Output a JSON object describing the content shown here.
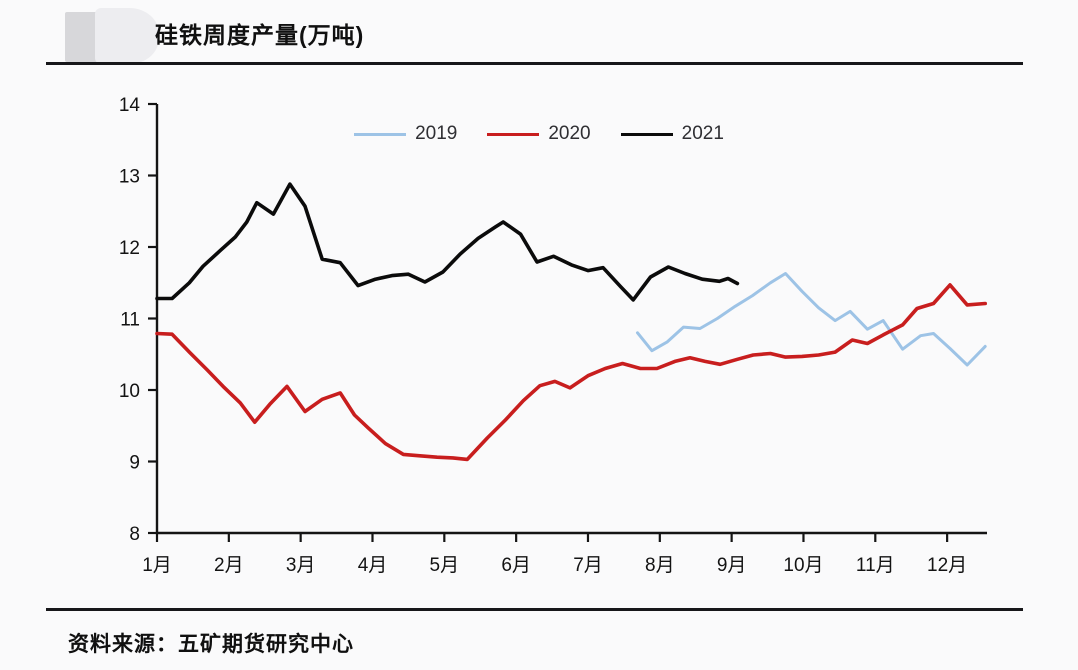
{
  "page": {
    "background": "#fafafb"
  },
  "header": {
    "title": "硅铁周度产量(万吨)",
    "logo": "blurred-gray-logo-placeholder"
  },
  "footer": {
    "source": "资料来源：五矿期货研究中心"
  },
  "chart_data": {
    "type": "line",
    "title": "硅铁周度产量(万吨)",
    "xlabel": "",
    "ylabel": "",
    "x_unit": "month-of-year (weekly data points)",
    "y_unit": "万吨",
    "xlim": [
      1,
      12.56
    ],
    "ylim": [
      8,
      14
    ],
    "y_ticks": [
      8,
      9,
      10,
      11,
      12,
      13,
      14
    ],
    "x_tick_labels": [
      "1月",
      "2月",
      "3月",
      "4月",
      "5月",
      "6月",
      "7月",
      "8月",
      "9月",
      "10月",
      "11月",
      "12月"
    ],
    "grid": false,
    "legend_position": "top-center",
    "axis_color": "#141414",
    "series": [
      {
        "name": "2019",
        "color": "#9dc3e6",
        "stroke_width": 3,
        "points": [
          [
            7.69,
            10.8
          ],
          [
            7.89,
            10.55
          ],
          [
            8.1,
            10.67
          ],
          [
            8.33,
            10.88
          ],
          [
            8.56,
            10.86
          ],
          [
            8.8,
            11.0
          ],
          [
            9.05,
            11.17
          ],
          [
            9.29,
            11.32
          ],
          [
            9.54,
            11.5
          ],
          [
            9.75,
            11.63
          ],
          [
            9.98,
            11.38
          ],
          [
            10.21,
            11.15
          ],
          [
            10.44,
            10.97
          ],
          [
            10.65,
            11.1
          ],
          [
            10.89,
            10.85
          ],
          [
            11.11,
            10.97
          ],
          [
            11.38,
            10.57
          ],
          [
            11.63,
            10.76
          ],
          [
            11.81,
            10.79
          ],
          [
            12.04,
            10.58
          ],
          [
            12.28,
            10.35
          ],
          [
            12.53,
            10.61
          ]
        ]
      },
      {
        "name": "2020",
        "color": "#c81e1e",
        "stroke_width": 3.6,
        "points": [
          [
            1.0,
            10.79
          ],
          [
            1.21,
            10.78
          ],
          [
            1.46,
            10.52
          ],
          [
            1.7,
            10.28
          ],
          [
            1.92,
            10.05
          ],
          [
            2.16,
            9.82
          ],
          [
            2.36,
            9.55
          ],
          [
            2.57,
            9.8
          ],
          [
            2.81,
            10.05
          ],
          [
            3.06,
            9.7
          ],
          [
            3.3,
            9.87
          ],
          [
            3.55,
            9.96
          ],
          [
            3.75,
            9.65
          ],
          [
            3.94,
            9.47
          ],
          [
            4.18,
            9.25
          ],
          [
            4.43,
            9.1
          ],
          [
            4.66,
            9.08
          ],
          [
            4.9,
            9.06
          ],
          [
            5.12,
            9.05
          ],
          [
            5.32,
            9.03
          ],
          [
            5.6,
            9.33
          ],
          [
            5.85,
            9.58
          ],
          [
            6.1,
            9.85
          ],
          [
            6.33,
            10.06
          ],
          [
            6.54,
            10.12
          ],
          [
            6.75,
            10.03
          ],
          [
            7.0,
            10.2
          ],
          [
            7.24,
            10.3
          ],
          [
            7.48,
            10.37
          ],
          [
            7.73,
            10.3
          ],
          [
            7.96,
            10.3
          ],
          [
            8.21,
            10.4
          ],
          [
            8.42,
            10.45
          ],
          [
            8.63,
            10.4
          ],
          [
            8.84,
            10.36
          ],
          [
            9.08,
            10.43
          ],
          [
            9.3,
            10.49
          ],
          [
            9.54,
            10.51
          ],
          [
            9.75,
            10.46
          ],
          [
            9.98,
            10.47
          ],
          [
            10.21,
            10.49
          ],
          [
            10.44,
            10.53
          ],
          [
            10.68,
            10.7
          ],
          [
            10.89,
            10.65
          ],
          [
            11.11,
            10.77
          ],
          [
            11.38,
            10.91
          ],
          [
            11.58,
            11.14
          ],
          [
            11.81,
            11.21
          ],
          [
            12.04,
            11.47
          ],
          [
            12.28,
            11.19
          ],
          [
            12.53,
            11.21
          ]
        ]
      },
      {
        "name": "2021",
        "color": "#0b0b0b",
        "stroke_width": 3.6,
        "points": [
          [
            1.0,
            11.28
          ],
          [
            1.21,
            11.28
          ],
          [
            1.45,
            11.5
          ],
          [
            1.64,
            11.73
          ],
          [
            1.88,
            11.95
          ],
          [
            2.09,
            12.14
          ],
          [
            2.25,
            12.35
          ],
          [
            2.39,
            12.62
          ],
          [
            2.62,
            12.46
          ],
          [
            2.85,
            12.88
          ],
          [
            3.06,
            12.57
          ],
          [
            3.3,
            11.83
          ],
          [
            3.55,
            11.78
          ],
          [
            3.8,
            11.46
          ],
          [
            4.04,
            11.55
          ],
          [
            4.27,
            11.6
          ],
          [
            4.5,
            11.62
          ],
          [
            4.73,
            11.51
          ],
          [
            4.98,
            11.65
          ],
          [
            5.22,
            11.9
          ],
          [
            5.47,
            12.12
          ],
          [
            5.71,
            12.28
          ],
          [
            5.82,
            12.35
          ],
          [
            6.06,
            12.18
          ],
          [
            6.29,
            11.79
          ],
          [
            6.52,
            11.87
          ],
          [
            6.77,
            11.75
          ],
          [
            7.0,
            11.67
          ],
          [
            7.21,
            11.71
          ],
          [
            7.45,
            11.45
          ],
          [
            7.63,
            11.26
          ],
          [
            7.87,
            11.58
          ],
          [
            8.12,
            11.72
          ],
          [
            8.35,
            11.63
          ],
          [
            8.59,
            11.55
          ],
          [
            8.83,
            11.52
          ],
          [
            8.95,
            11.56
          ],
          [
            9.08,
            11.49
          ]
        ]
      }
    ]
  }
}
